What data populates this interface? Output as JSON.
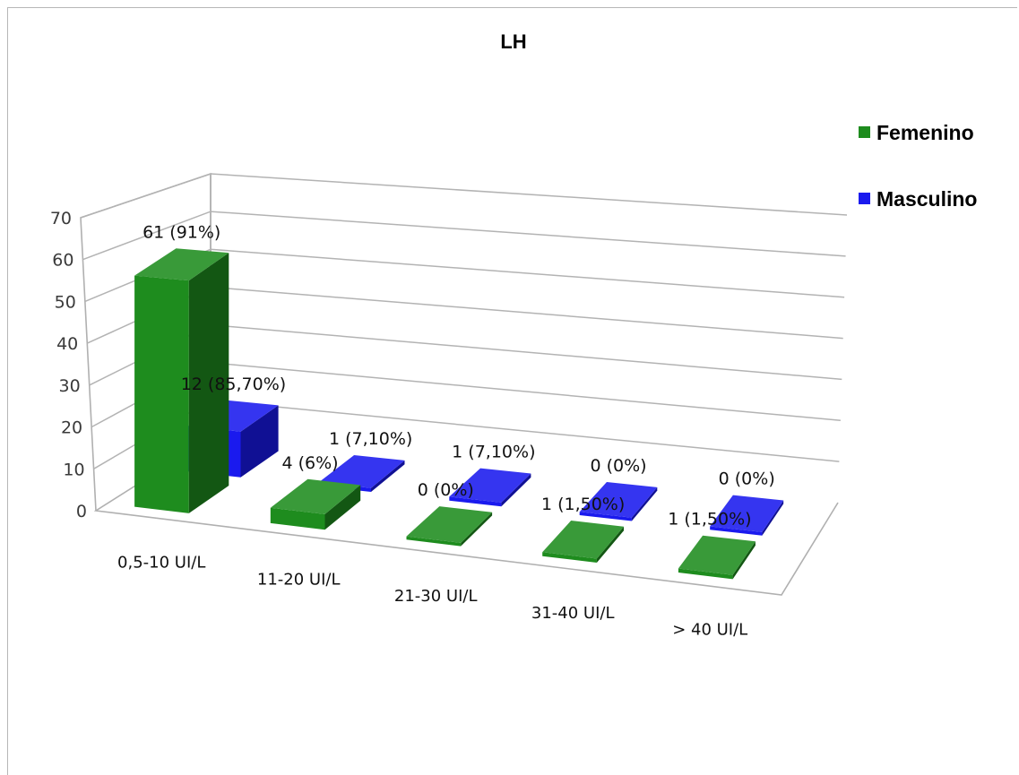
{
  "chart_data": {
    "type": "bar",
    "title": "LH",
    "categories": [
      "0,5-10 UI/L",
      "11-20 UI/L",
      "21-30 UI/L",
      "31-40 UI/L",
      "> 40 UI/L"
    ],
    "ylim": [
      0,
      70
    ],
    "yticks": [
      "0",
      "10",
      "20",
      "30",
      "40",
      "50",
      "60",
      "70"
    ],
    "grid": true,
    "legend_position": "right",
    "series": [
      {
        "name": "Femenino",
        "color": "#1e8c1e",
        "values": [
          61,
          4,
          0,
          1,
          1
        ],
        "labels": [
          "61 (91%)",
          "4 (6%)",
          "0 (0%)",
          "1 (1,50%)",
          "1 (1,50%)"
        ]
      },
      {
        "name": "Masculino",
        "color": "#1a1aee",
        "values": [
          12,
          1,
          1,
          0,
          0
        ],
        "labels": [
          "12 (85,70%)",
          "1 (7,10%)",
          "1 (7,10%)",
          "0 (0%)",
          "0 (0%)"
        ]
      }
    ]
  }
}
